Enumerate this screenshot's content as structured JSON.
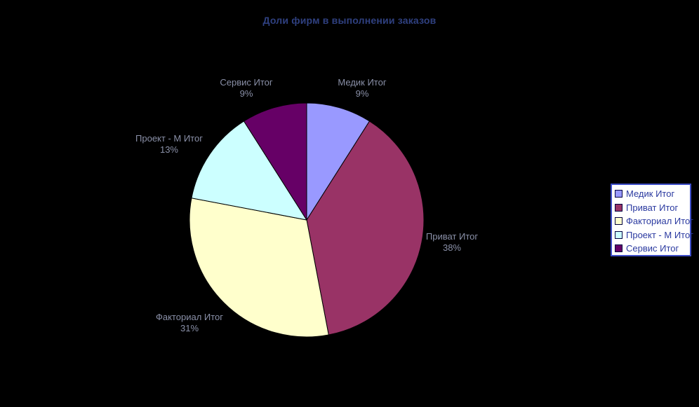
{
  "background_color": "#000000",
  "chart_data": {
    "type": "pie",
    "title": "Доли фирм в выполнении заказов",
    "start_angle_deg": 0,
    "direction": "clockwise",
    "legend_position": "right",
    "slice_border_color": "#000000",
    "title_color": "#2F4080",
    "label_color": "#8A90A8",
    "legend_bg": "#FFFFFF",
    "legend_border_color": "#3E4EC8",
    "legend_text_color": "#2B3AA0",
    "swatch_border_color": "#000040",
    "slices": [
      {
        "name": "Медик Итог",
        "value_pct": 9,
        "pct_label": "9%",
        "color": "#9999FF"
      },
      {
        "name": "Приват Итог",
        "value_pct": 38,
        "pct_label": "38%",
        "color": "#993366"
      },
      {
        "name": "Факториал Итог",
        "value_pct": 31,
        "pct_label": "31%",
        "color": "#FFFFCC"
      },
      {
        "name": "Проект - М Итог",
        "value_pct": 13,
        "pct_label": "13%",
        "color": "#CCFFFF"
      },
      {
        "name": "Сервис Итог",
        "value_pct": 9,
        "pct_label": "9%",
        "color": "#660066"
      }
    ]
  }
}
